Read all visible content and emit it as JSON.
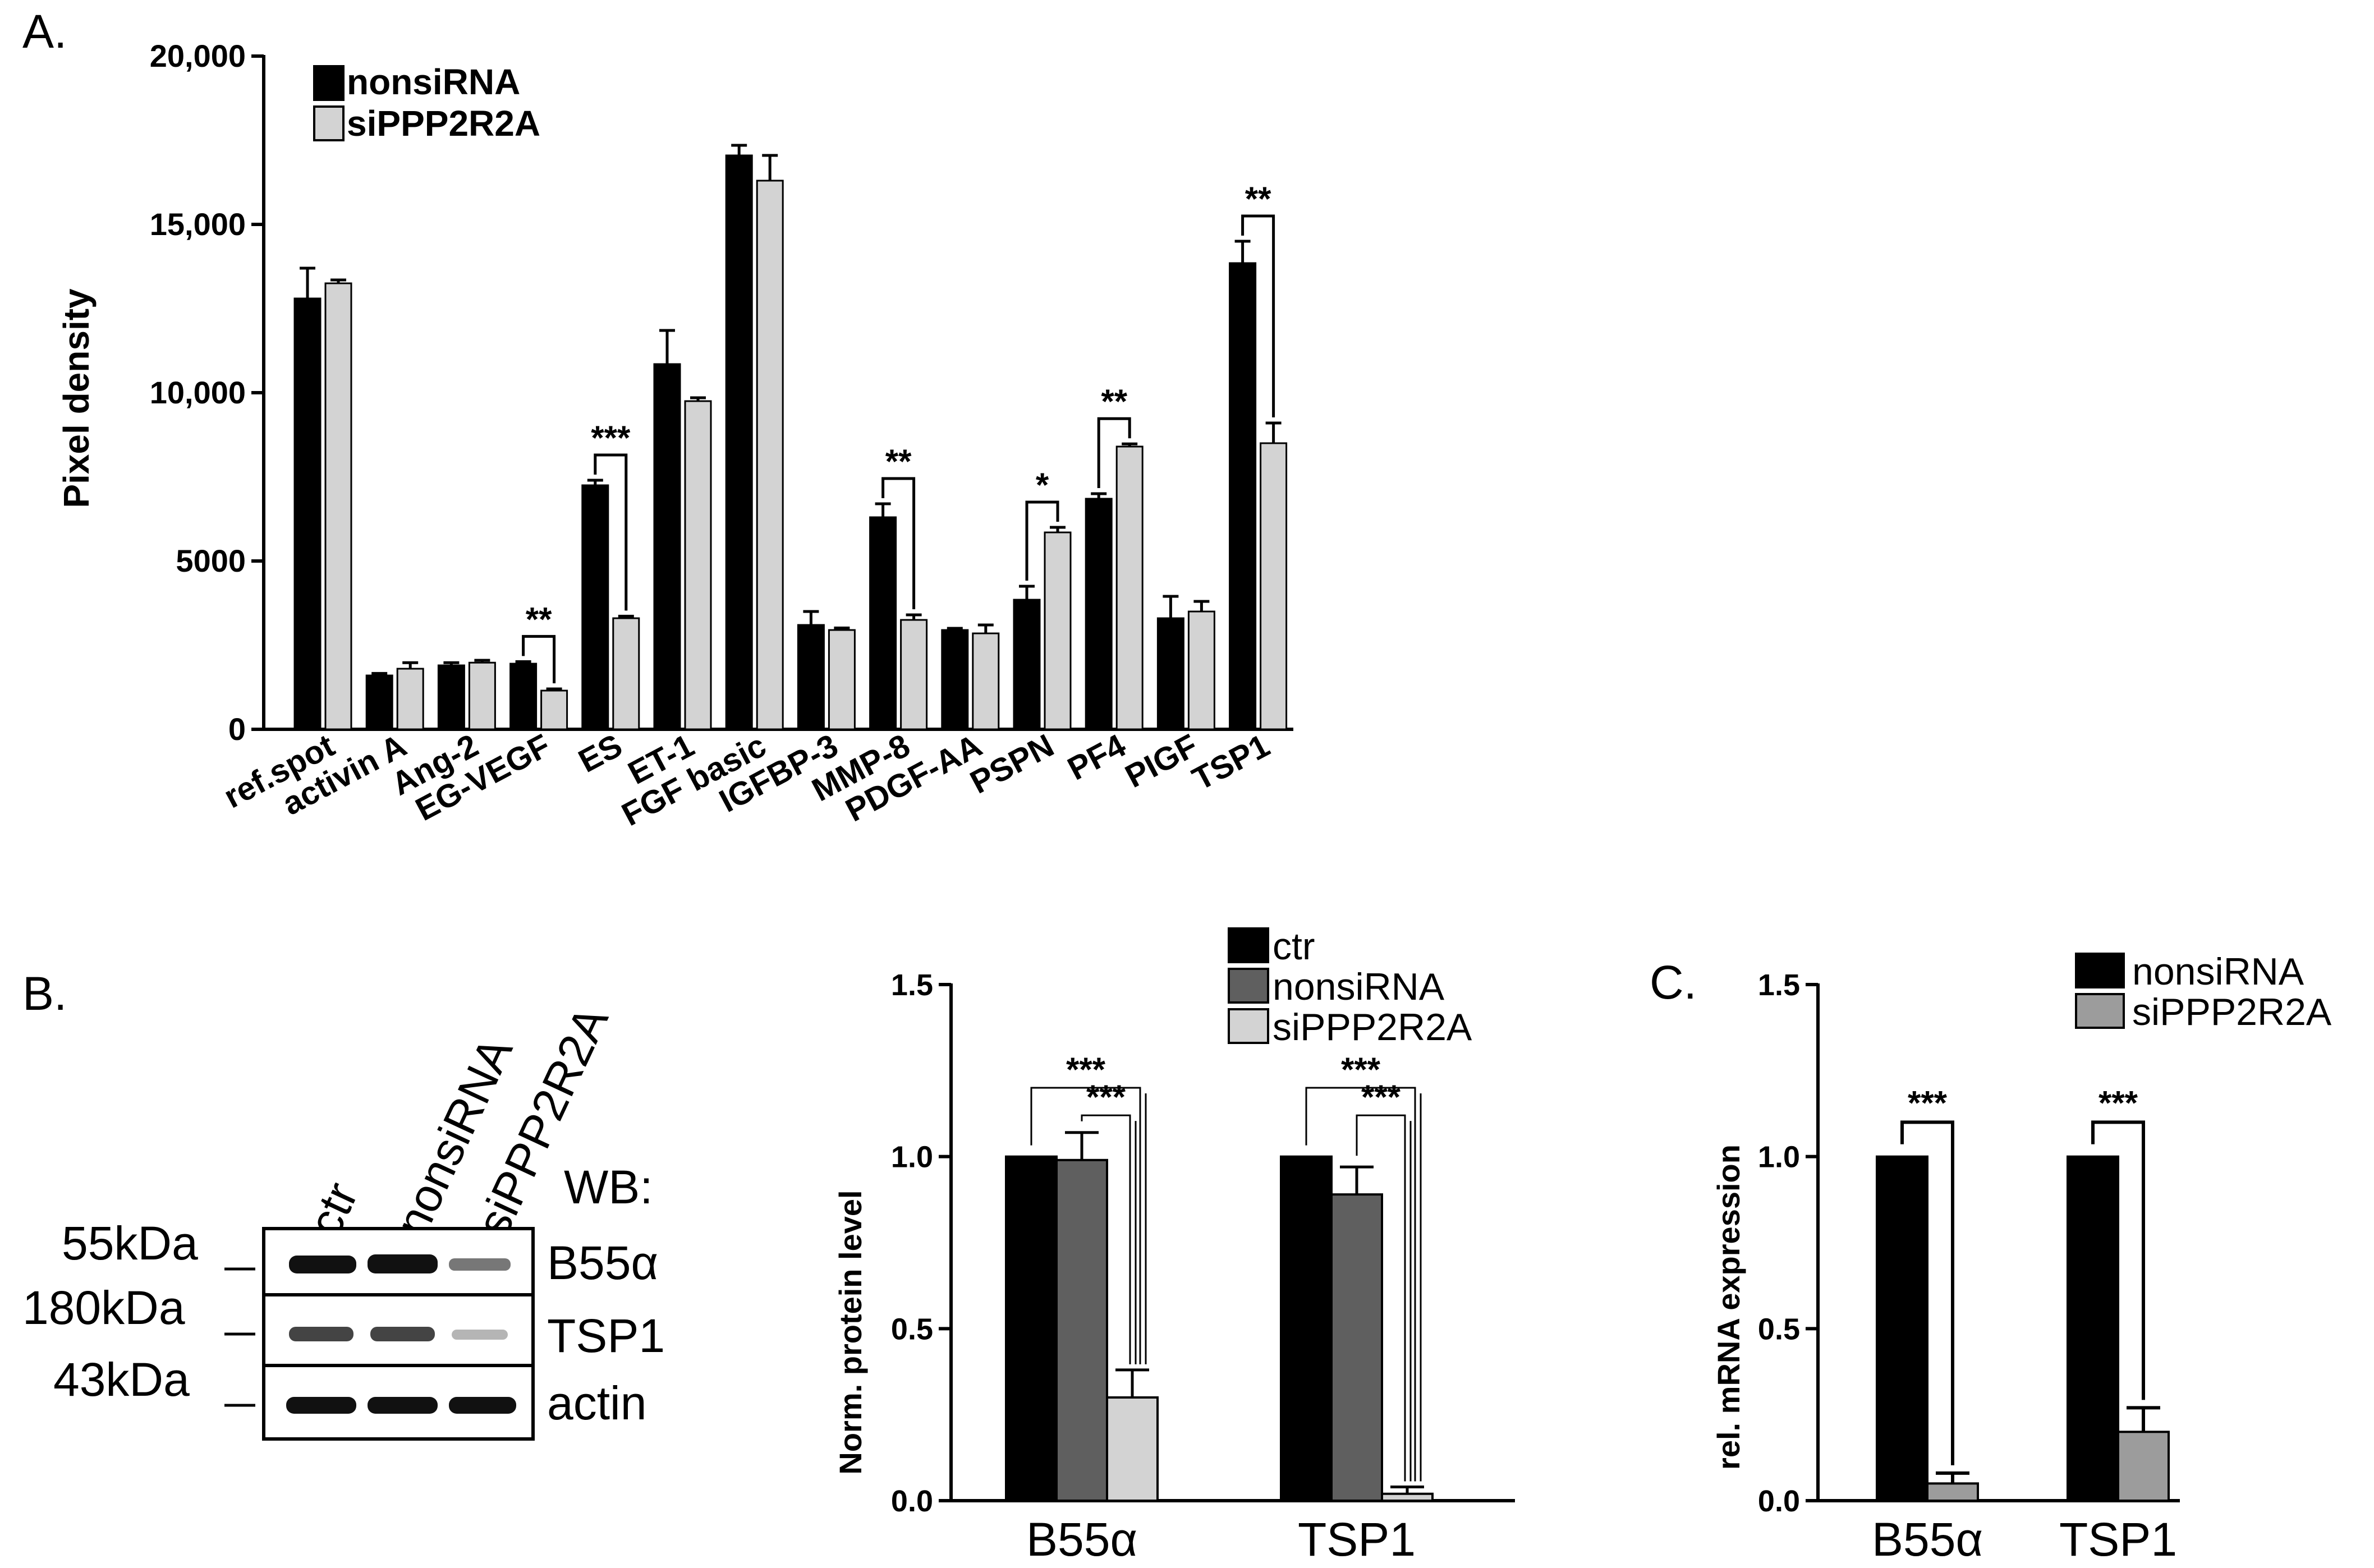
{
  "panel_labels": {
    "a": "A.",
    "b": "B.",
    "c": "C."
  },
  "colors": {
    "black": "#000000",
    "light_gray": "#d3d3d3",
    "dark_gray": "#5f5f5f",
    "mid_gray": "#9c9c9c"
  },
  "chart_data": [
    {
      "id": "A",
      "type": "bar",
      "ylabel": "Pixel density",
      "xlabel": "",
      "ylim": [
        0,
        20000
      ],
      "yticks": [
        0,
        5000,
        10000,
        15000,
        20000
      ],
      "ytick_labels": [
        "0",
        "5000",
        "10,000",
        "15,000",
        "20,000"
      ],
      "categories": [
        "ref.spot",
        "activin A",
        "Ang-2",
        "EG-VEGF",
        "ES",
        "ET-1",
        "FGF basic",
        "IGFBP-3",
        "MMP-8",
        "PDGF-AA",
        "PSPN",
        "PF4",
        "PIGF",
        "TSP1"
      ],
      "series": [
        {
          "name": "nonsiRNA",
          "color": "#000000",
          "values": [
            12800,
            1600,
            1900,
            1950,
            7250,
            10850,
            17050,
            3100,
            6300,
            2950,
            3850,
            6850,
            3300,
            13850
          ],
          "errors": [
            900,
            60,
            80,
            60,
            150,
            1000,
            300,
            400,
            400,
            50,
            400,
            150,
            650,
            650
          ]
        },
        {
          "name": "siPPP2R2A",
          "color": "#d3d3d3",
          "values": [
            13250,
            1800,
            1980,
            1150,
            3300,
            9750,
            16300,
            2950,
            3250,
            2850,
            5850,
            8400,
            3500,
            8500
          ],
          "errors": [
            100,
            180,
            70,
            50,
            60,
            100,
            750,
            60,
            150,
            250,
            150,
            80,
            300,
            600
          ]
        }
      ],
      "significance": [
        {
          "category": "EG-VEGF",
          "label": "**"
        },
        {
          "category": "ES",
          "label": "***"
        },
        {
          "category": "MMP-8",
          "label": "**"
        },
        {
          "category": "PSPN",
          "label": "*"
        },
        {
          "category": "PF4",
          "label": "**"
        },
        {
          "category": "TSP1",
          "label": "**"
        }
      ]
    },
    {
      "id": "B",
      "type": "bar",
      "ylabel": "Norm. protein level",
      "xlabel": "",
      "ylim": [
        0,
        1.5
      ],
      "yticks": [
        0,
        0.5,
        1.0,
        1.5
      ],
      "ytick_labels": [
        "0.0",
        "0.5",
        "1.0",
        "1.5"
      ],
      "categories": [
        "B55α",
        "TSP1"
      ],
      "series": [
        {
          "name": "ctr",
          "color": "#000000",
          "values": [
            1.0,
            1.0
          ],
          "errors": [
            0,
            0
          ]
        },
        {
          "name": "nonsiRNA",
          "color": "#5f5f5f",
          "values": [
            0.99,
            0.89
          ],
          "errors": [
            0.08,
            0.08
          ]
        },
        {
          "name": "siPPP2R2A",
          "color": "#d3d3d3",
          "values": [
            0.3,
            0.02
          ],
          "errors": [
            0.08,
            0.02
          ]
        }
      ],
      "significance": [
        {
          "category": "B55α",
          "label": "***",
          "pair": "ctr-siPPP2R2A"
        },
        {
          "category": "B55α",
          "label": "***",
          "pair": "nonsiRNA-siPPP2R2A"
        },
        {
          "category": "TSP1",
          "label": "***",
          "pair": "ctr-siPPP2R2A"
        },
        {
          "category": "TSP1",
          "label": "***",
          "pair": "nonsiRNA-siPPP2R2A"
        }
      ]
    },
    {
      "id": "C",
      "type": "bar",
      "ylabel": "rel. mRNA expression",
      "xlabel": "",
      "ylim": [
        0,
        1.5
      ],
      "yticks": [
        0,
        0.5,
        1.0,
        1.5
      ],
      "ytick_labels": [
        "0.0",
        "0.5",
        "1.0",
        "1.5"
      ],
      "categories": [
        "B55α",
        "TSP1"
      ],
      "series": [
        {
          "name": "nonsiRNA",
          "color": "#000000",
          "values": [
            1.0,
            1.0
          ],
          "errors": [
            0,
            0
          ]
        },
        {
          "name": "siPPP2R2A",
          "color": "#9c9c9c",
          "values": [
            0.05,
            0.2
          ],
          "errors": [
            0.03,
            0.07
          ]
        }
      ],
      "significance": [
        {
          "category": "B55α",
          "label": "***"
        },
        {
          "category": "TSP1",
          "label": "***"
        }
      ]
    }
  ],
  "western_blot": {
    "lanes": [
      "ctr",
      "nonsiRNA",
      "siPPP2R2A"
    ],
    "header": "WB:",
    "rows": [
      {
        "marker": "55kDa",
        "protein": "B55α",
        "band_intensity": [
          1.0,
          1.0,
          0.3
        ]
      },
      {
        "marker": "180kDa",
        "protein": "TSP1",
        "band_intensity": [
          0.6,
          0.6,
          0.15
        ]
      },
      {
        "marker": "43kDa",
        "protein": "actin",
        "band_intensity": [
          1.0,
          1.0,
          1.0
        ]
      }
    ]
  }
}
